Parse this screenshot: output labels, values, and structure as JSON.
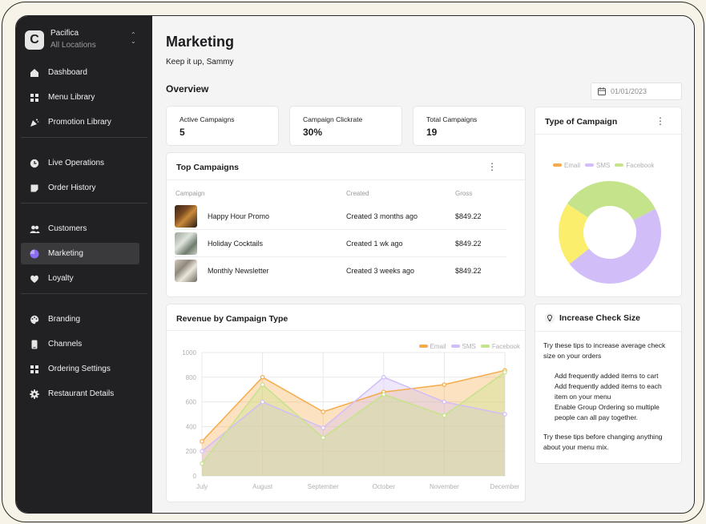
{
  "app": {
    "brand_name": "Pacifica",
    "location": "All Locations",
    "logo_letter": "C"
  },
  "sidebar": {
    "groups": [
      [
        {
          "label": "Dashboard",
          "icon": "home-icon"
        },
        {
          "label": "Menu Library",
          "icon": "grid-icon"
        },
        {
          "label": "Promotion Library",
          "icon": "party-icon"
        }
      ],
      [
        {
          "label": "Live Operations",
          "icon": "clock-icon"
        },
        {
          "label": "Order History",
          "icon": "note-icon"
        }
      ],
      [
        {
          "label": "Customers",
          "icon": "users-icon"
        },
        {
          "label": "Marketing",
          "icon": "pie-icon",
          "active": true
        },
        {
          "label": "Loyalty",
          "icon": "heart-icon"
        }
      ],
      [
        {
          "label": "Branding",
          "icon": "palette-icon"
        },
        {
          "label": "Channels",
          "icon": "phone-icon"
        },
        {
          "label": "Ordering Settings",
          "icon": "grid-icon"
        },
        {
          "label": "Restaurant Details",
          "icon": "gear-icon"
        }
      ]
    ]
  },
  "header": {
    "title": "Marketing",
    "subtitle": "Keep it up, Sammy",
    "overview": "Overview",
    "date": "01/01/2023"
  },
  "stats": [
    {
      "label": "Active Campaigns",
      "value": "5"
    },
    {
      "label": "Campaign Clickrate",
      "value": "30%"
    },
    {
      "label": "Total Campaigns",
      "value": "19"
    }
  ],
  "top_campaigns": {
    "title": "Top Campaigns",
    "columns": [
      "Campaign",
      "Created",
      "Gross"
    ],
    "rows": [
      {
        "name": "Happy Hour Promo",
        "created": "Created 3 months ago",
        "gross": "$849.22"
      },
      {
        "name": "Holiday Cocktails",
        "created": "Created 1 wk ago",
        "gross": "$849.22"
      },
      {
        "name": "Monthly Newsletter",
        "created": "Created 3 weeks ago",
        "gross": "$849.22"
      }
    ]
  },
  "type_of_campaign": {
    "title": "Type of Campaign"
  },
  "revenue": {
    "title": "Revenue by Campaign Type"
  },
  "colors": {
    "email": "#f5ab4b",
    "sms": "#d1bdf7",
    "facebook": "#c4e38a",
    "pie_yellow": "#fcee6d",
    "active_icon": "#8b6cf5"
  },
  "chart_data": [
    {
      "type": "pie",
      "variant": "donut",
      "legend": [
        "Email",
        "SMS",
        "Facebook"
      ],
      "legend_position": "top",
      "slices": [
        {
          "name": "Facebook",
          "value": 33
        },
        {
          "name": "SMS",
          "value": 47
        },
        {
          "name": "",
          "value": 20
        }
      ]
    },
    {
      "type": "area",
      "categories": [
        "July",
        "August",
        "September",
        "October",
        "November",
        "December"
      ],
      "series": [
        {
          "name": "Email",
          "values": [
            280,
            800,
            520,
            680,
            740,
            855
          ]
        },
        {
          "name": "SMS",
          "values": [
            200,
            600,
            390,
            800,
            600,
            500
          ]
        },
        {
          "name": "Facebook",
          "values": [
            100,
            740,
            310,
            660,
            490,
            840
          ]
        }
      ],
      "ylim": [
        0,
        1000
      ],
      "yticks": [
        0,
        200,
        400,
        600,
        800,
        1000
      ],
      "legend_position": "top-right",
      "grid": true
    }
  ],
  "tips": {
    "title": "Increase Check Size",
    "intro": "Try these tips to increase average check size on your orders",
    "items": [
      "Add frequently added items to cart",
      "Add frequently added items to each item on your menu",
      "Enable Group Ordering so multiple people can all pay together."
    ],
    "outro": "Try these tips before changing anything about your menu mix."
  }
}
